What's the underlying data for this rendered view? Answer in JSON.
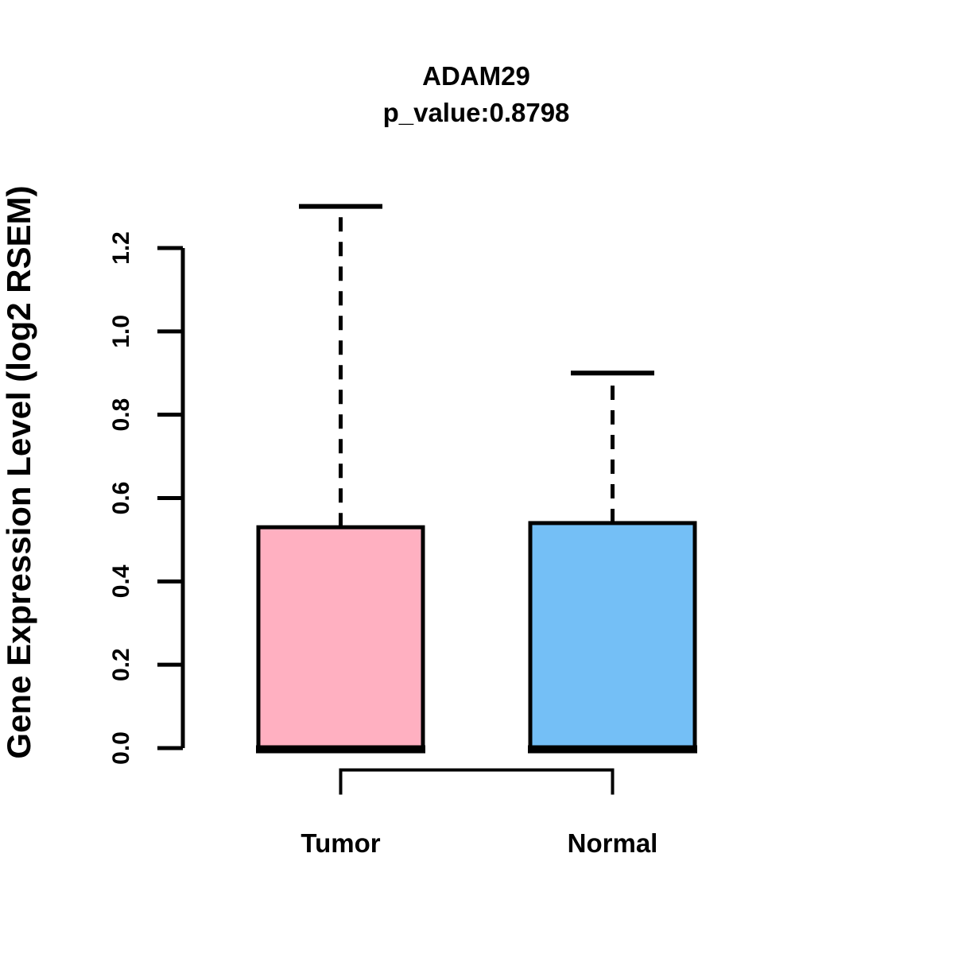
{
  "figure": {
    "background": "#ffffff",
    "title": "ADAM29",
    "subtitle": "p_value:0.8798",
    "ylabel": "Gene Expression Level (log2 RSEM)"
  },
  "chart_data": {
    "type": "boxplot",
    "title": "ADAM29",
    "subtitle": "p_value:0.8798",
    "ylabel": "Gene Expression Level (log2 RSEM)",
    "xlabel": "",
    "categories": [
      "Tumor",
      "Normal"
    ],
    "series": [
      {
        "name": "Tumor",
        "color": "#FFB0C1",
        "whisker_low": 0.0,
        "q1": 0.0,
        "median": 0.0,
        "q3": 0.53,
        "whisker_high": 1.3
      },
      {
        "name": "Normal",
        "color": "#74BFF6",
        "whisker_low": 0.0,
        "q1": 0.0,
        "median": 0.0,
        "q3": 0.54,
        "whisker_high": 0.9
      }
    ],
    "ylim": [
      0.0,
      1.2
    ],
    "ytick_labels": [
      "0.0",
      "0.2",
      "0.4",
      "0.6",
      "0.8",
      "1.0",
      "1.2"
    ],
    "grid": false,
    "legend": "none",
    "comparison_bracket": {
      "from": "Tumor",
      "to": "Normal"
    },
    "line_color": "#000000"
  }
}
